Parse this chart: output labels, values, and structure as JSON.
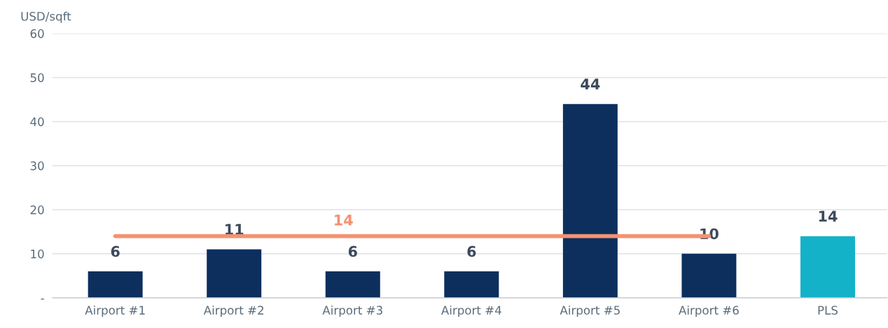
{
  "chart_data": {
    "type": "bar",
    "ylabel": "USD/sqft",
    "categories": [
      "Airport #1",
      "Airport #2",
      "Airport #3",
      "Airport #4",
      "Airport #5",
      "Airport #6",
      "PLS"
    ],
    "values": [
      6,
      11,
      6,
      6,
      44,
      10,
      14
    ],
    "colors": [
      "#0c2f5e",
      "#0c2f5e",
      "#0c2f5e",
      "#0c2f5e",
      "#0c2f5e",
      "#0c2f5e",
      "#14b2c8"
    ],
    "ylim": [
      0,
      60
    ],
    "yticks": [
      {
        "value": 0,
        "label": "-"
      },
      10,
      20,
      30,
      40,
      50,
      60
    ],
    "grid": "y",
    "data_labels": true,
    "legend": false,
    "ref_lines": [
      {
        "axis": "y",
        "value": 14,
        "label": "14",
        "color": "#f4926f",
        "line_style": "solid"
      }
    ]
  }
}
